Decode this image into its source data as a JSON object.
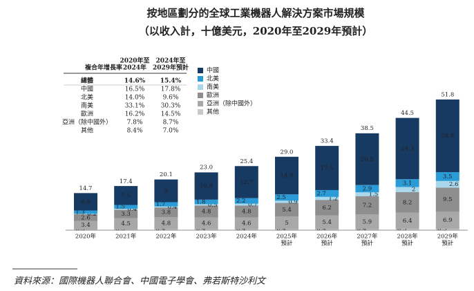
{
  "chart_data": {
    "type": "stacked_bar",
    "title": "按地區劃分的全球工業機器人解決方案市場規模",
    "subtitle": "（以收入計，十億美元，2020年至2029年預計）",
    "categories": [
      [
        "2020年"
      ],
      [
        "2021年"
      ],
      [
        "2022年"
      ],
      [
        "2023年"
      ],
      [
        "2024年"
      ],
      [
        "2025年",
        "預計"
      ],
      [
        "2026年",
        "預計"
      ],
      [
        "2027年",
        "預計"
      ],
      [
        "2028年",
        "預計"
      ],
      [
        "2029年",
        "預計"
      ]
    ],
    "series": [
      {
        "name": "其他",
        "color": "#c9c9c9",
        "values": [
          0.3,
          0.3,
          0.4,
          0.4,
          0.4,
          0.4,
          0.4,
          0.4,
          0.5,
          0.5
        ]
      },
      {
        "name": "亞洲（除中國外）",
        "color": "#a8a8a8",
        "values": [
          3.4,
          4.5,
          4.8,
          4.6,
          4.6,
          5.0,
          5.4,
          5.9,
          6.4,
          6.9
        ]
      },
      {
        "name": "歐洲",
        "color": "#8e8e8e",
        "values": [
          2.6,
          3.3,
          3.8,
          4.8,
          4.8,
          5.4,
          6.2,
          7.2,
          8.2,
          9.5
        ]
      },
      {
        "name": "南美",
        "color": "#a9d8ec",
        "values": [
          0.2,
          0.4,
          0.4,
          0.5,
          0.7,
          0.9,
          1.2,
          1.5,
          2.0,
          2.6
        ]
      },
      {
        "name": "北美",
        "color": "#2a9bd6",
        "values": [
          1.3,
          1.5,
          1.7,
          1.8,
          2.2,
          2.5,
          2.7,
          2.9,
          3.1,
          3.5
        ]
      },
      {
        "name": "中國",
        "color": "#173a63",
        "values": [
          6.9,
          7.5,
          9.0,
          10.8,
          12.7,
          14.9,
          17.5,
          20.5,
          24.3,
          28.8
        ]
      }
    ],
    "totals": [
      14.7,
      17.4,
      20.1,
      23.0,
      25.4,
      29.0,
      33.4,
      38.5,
      44.5,
      51.8
    ],
    "total_labels": [
      "14.7",
      "17.4",
      "20.1",
      "23.0",
      "25.4",
      "29.0",
      "33.4",
      "38.5",
      "44.5",
      "51.8"
    ],
    "cagr_table": {
      "header": [
        [
          "複合年增長率"
        ],
        [
          "2020年至",
          "2024年"
        ],
        [
          "2024年至",
          "2029年預計"
        ]
      ],
      "rows": [
        [
          "總體",
          "14.6%",
          "15.4%"
        ],
        [
          "中國",
          "16.5%",
          "17.8%"
        ],
        [
          "北美",
          "14.0%",
          "9.6%"
        ],
        [
          "南美",
          "33.1%",
          "30.3%"
        ],
        [
          "歐洲",
          "16.2%",
          "14.5%"
        ],
        [
          "亞洲（除中國外）",
          "7.8%",
          "8.7%"
        ],
        [
          "其他",
          "8.4%",
          "7.0%"
        ]
      ]
    },
    "source": "資料來源：國際機器人聯合會、中國電子學會、弗若斯特沙利文"
  }
}
